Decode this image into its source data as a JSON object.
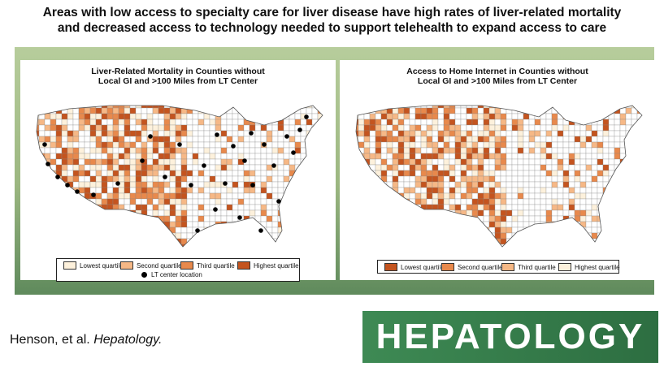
{
  "headline": {
    "line1": "Areas with low access to specialty care for liver disease have high rates of liver-related mortality",
    "line2": "and decreased access to technology needed to support telehealth to expand access to care"
  },
  "left_map": {
    "title_line1": "Liver-Related Mortality in Counties without",
    "title_line2": "Local GI and >100 Miles from LT Center",
    "legend": [
      {
        "label": "Lowest quartile",
        "color": "#fdf1dc"
      },
      {
        "label": "Second quartile",
        "color": "#f6b886"
      },
      {
        "label": "Third quartile",
        "color": "#e8894c"
      },
      {
        "label": "Highest quartile",
        "color": "#c4541f"
      }
    ],
    "marker_label": "LT center location"
  },
  "right_map": {
    "title_line1": "Access to Home Internet in Counties without",
    "title_line2": "Local GI and >100 Miles from LT Center",
    "legend": [
      {
        "label": "Lowest quartile",
        "color": "#c4541f"
      },
      {
        "label": "Second quartile",
        "color": "#e8894c"
      },
      {
        "label": "Third quartile",
        "color": "#f6b886"
      },
      {
        "label": "Highest quartile",
        "color": "#fdf1dc"
      }
    ]
  },
  "citation": {
    "authors": "Henson, et al.",
    "journal": "Hepatology."
  },
  "brand": {
    "label": "HEPATOLOGY",
    "color": "#2f7446"
  },
  "colors": {
    "county_default": "#ffffff",
    "border": "#888888",
    "marker": "#000000"
  }
}
